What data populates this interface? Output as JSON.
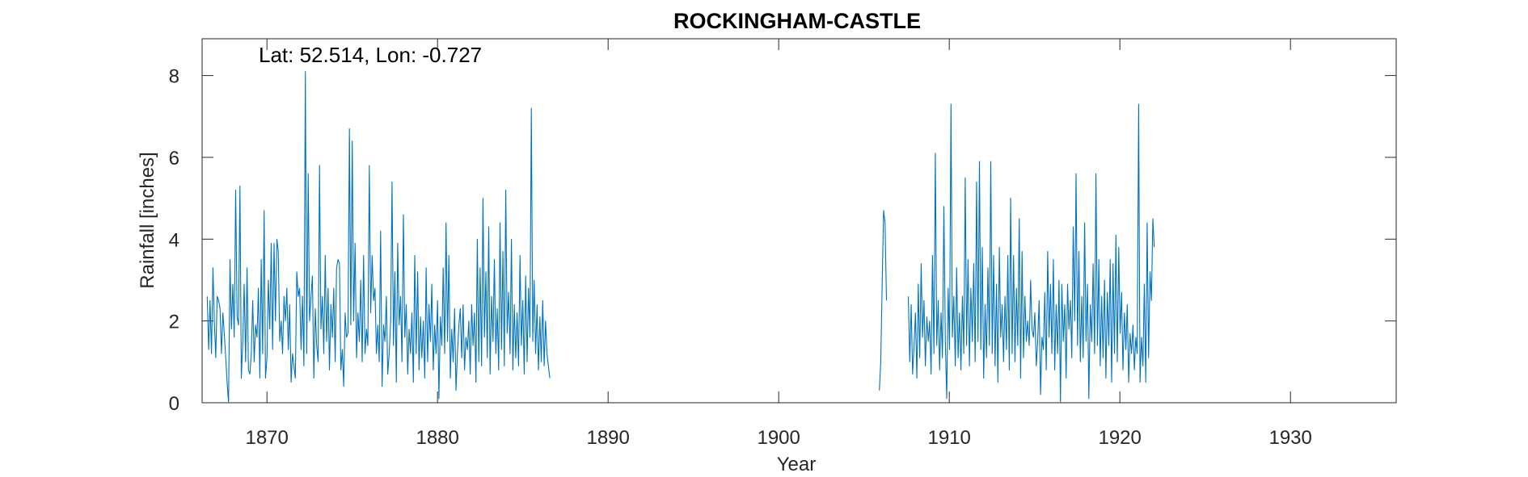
{
  "chart_data": {
    "type": "line",
    "title": "ROCKINGHAM-CASTLE",
    "xlabel": "Year",
    "ylabel": "Rainfall [inches]",
    "annotation": "Lat: 52.514, Lon: -0.727",
    "xlim": [
      1866.2,
      1936.2
    ],
    "ylim": [
      0,
      8.9
    ],
    "xticks": [
      1870,
      1880,
      1890,
      1900,
      1910,
      1920,
      1930
    ],
    "yticks": [
      0,
      2,
      4,
      6,
      8
    ],
    "grid": false,
    "box": true,
    "series": [
      {
        "color": "#0072BD",
        "x_start": 1866.5,
        "x_step_months": 1,
        "values": [
          2.6,
          1.3,
          2.5,
          1.2,
          3.3,
          2.0,
          1.1,
          2.6,
          2.5,
          2.3,
          1.2,
          2.2,
          1.7,
          1.1,
          0.5,
          0.0,
          3.5,
          1.8,
          2.9,
          1.6,
          5.2,
          2.1,
          1.9,
          5.3,
          0.6,
          1.5,
          2.9,
          1.0,
          3.3,
          0.8,
          0.7,
          1.2,
          2.5,
          1.0,
          1.9,
          1.6,
          2.8,
          0.6,
          3.5,
          1.2,
          4.7,
          0.6,
          1.1,
          3.0,
          1.8,
          3.9,
          1.3,
          3.9,
          2.0,
          4.0,
          3.7,
          1.5,
          2.0,
          1.2,
          2.6,
          2.0,
          2.8,
          1.3,
          2.4,
          0.5,
          1.2,
          0.9,
          0.6,
          3.2,
          2.6,
          2.8,
          1.3,
          2.6,
          0.9,
          8.1,
          1.2,
          5.6,
          2.0,
          2.6,
          3.1,
          0.6,
          2.3,
          1.4,
          1.0,
          5.8,
          1.8,
          2.6,
          1.2,
          3.6,
          1.5,
          2.8,
          0.8,
          2.4,
          1.6,
          2.8,
          1.0,
          3.3,
          3.5,
          3.4,
          0.8,
          1.3,
          0.4,
          2.2,
          1.6,
          1.7,
          6.7,
          1.9,
          6.4,
          2.0,
          3.9,
          1.1,
          2.2,
          1.5,
          3.0,
          1.0,
          3.6,
          1.2,
          1.8,
          1.4,
          5.8,
          2.2,
          3.6,
          2.5,
          2.8,
          1.2,
          1.9,
          1.0,
          4.2,
          0.4,
          1.9,
          1.5,
          2.6,
          0.7,
          1.2,
          2.0,
          5.4,
          1.4,
          3.2,
          0.5,
          3.9,
          1.9,
          2.6,
          1.0,
          4.6,
          1.6,
          2.4,
          0.7,
          1.8,
          1.2,
          2.2,
          0.5,
          3.6,
          1.2,
          3.2,
          0.8,
          2.1,
          1.1,
          2.0,
          0.6,
          3.3,
          1.0,
          2.4,
          1.5,
          2.9,
          0.8,
          1.9,
          1.2,
          2.5,
          0.1,
          2.1,
          1.4,
          3.3,
          1.2,
          4.4,
          1.5,
          3.6,
          0.6,
          1.8,
          1.0,
          2.3,
          0.3,
          1.2,
          1.9,
          2.3,
          1.1,
          2.4,
          0.8,
          1.6,
          1.3,
          2.0,
          0.7,
          2.4,
          1.4,
          2.2,
          0.5,
          4.0,
          1.0,
          3.3,
          0.9,
          5.0,
          1.6,
          3.2,
          1.1,
          4.3,
          0.7,
          2.6,
          1.5,
          3.5,
          1.2,
          2.3,
          0.8,
          4.4,
          1.3,
          3.7,
          0.9,
          5.2,
          1.7,
          2.7,
          1.2,
          4.0,
          0.8,
          2.4,
          1.1,
          2.2,
          0.9,
          3.6,
          1.4,
          2.5,
          0.7,
          3.1,
          1.0,
          2.8,
          1.6,
          7.2,
          1.5,
          3.0,
          1.2,
          2.4,
          0.8,
          2.1,
          1.0,
          2.5,
          0.9,
          2.0,
          1.2,
          0.9,
          0.6
        ],
        "segments": [
          {
            "x_start": 1905.9,
            "values": [
              0.3,
              1.0,
              2.9,
              4.7,
              4.4,
              2.5
            ]
          },
          {
            "x_start": 1907.6,
            "values": [
              2.6,
              1.0,
              2.4,
              0.7,
              1.4,
              2.2,
              0.6,
              2.9,
              1.1,
              3.4,
              1.6,
              2.5,
              0.9,
              2.1,
              1.5,
              2.0,
              0.7,
              3.6,
              1.2,
              6.1,
              1.4,
              2.5,
              0.8,
              2.2,
              1.1,
              4.8,
              1.5,
              0.1,
              2.8,
              1.3,
              7.3,
              1.6,
              2.6,
              0.9,
              3.3,
              1.1,
              2.2,
              0.8,
              2.6,
              1.2,
              5.5,
              1.4,
              3.5,
              0.9,
              2.8,
              1.5,
              3.4,
              1.0,
              5.4,
              1.5,
              5.9,
              1.3,
              3.8,
              0.6,
              2.4,
              1.1,
              3.3,
              1.4,
              5.9,
              1.2,
              3.6,
              0.9,
              2.9,
              0.5,
              3.8,
              1.6,
              2.4,
              1.0,
              2.6,
              1.3,
              3.6,
              0.8,
              5.0,
              1.2,
              3.6,
              1.0,
              2.8,
              1.4,
              4.5,
              0.6,
              3.7,
              1.1,
              2.6,
              1.5,
              2.0,
              1.4,
              3.0,
              1.8,
              1.6,
              2.2,
              0.9,
              1.5,
              2.5,
              0.2,
              1.6,
              1.3,
              2.7,
              0.8,
              3.7,
              1.6,
              2.9,
              1.2,
              3.5,
              0.8,
              2.4,
              1.2,
              3.0,
              0.0,
              2.9,
              1.5,
              2.4,
              0.6,
              2.9,
              1.8,
              2.5,
              1.1,
              4.3,
              2.0,
              5.6,
              1.4,
              3.7,
              1.0,
              2.6,
              1.1,
              4.4,
              1.5,
              2.9,
              0.1,
              2.4,
              1.5,
              3.4,
              1.2,
              5.6,
              1.4,
              3.5,
              0.9,
              2.6,
              1.1,
              3.0,
              0.6,
              2.7,
              1.4,
              3.5,
              0.5,
              3.4,
              1.2,
              4.1,
              1.0,
              3.8,
              1.7,
              2.7,
              0.8,
              2.2,
              1.3,
              2.4,
              0.5,
              1.7,
              1.2,
              1.9,
              0.8,
              1.6,
              1.2,
              7.3,
              0.5,
              1.6,
              0.9,
              2.9,
              0.5,
              4.4,
              1.1,
              3.2,
              2.5,
              4.5,
              3.8
            ]
          }
        ]
      }
    ]
  }
}
